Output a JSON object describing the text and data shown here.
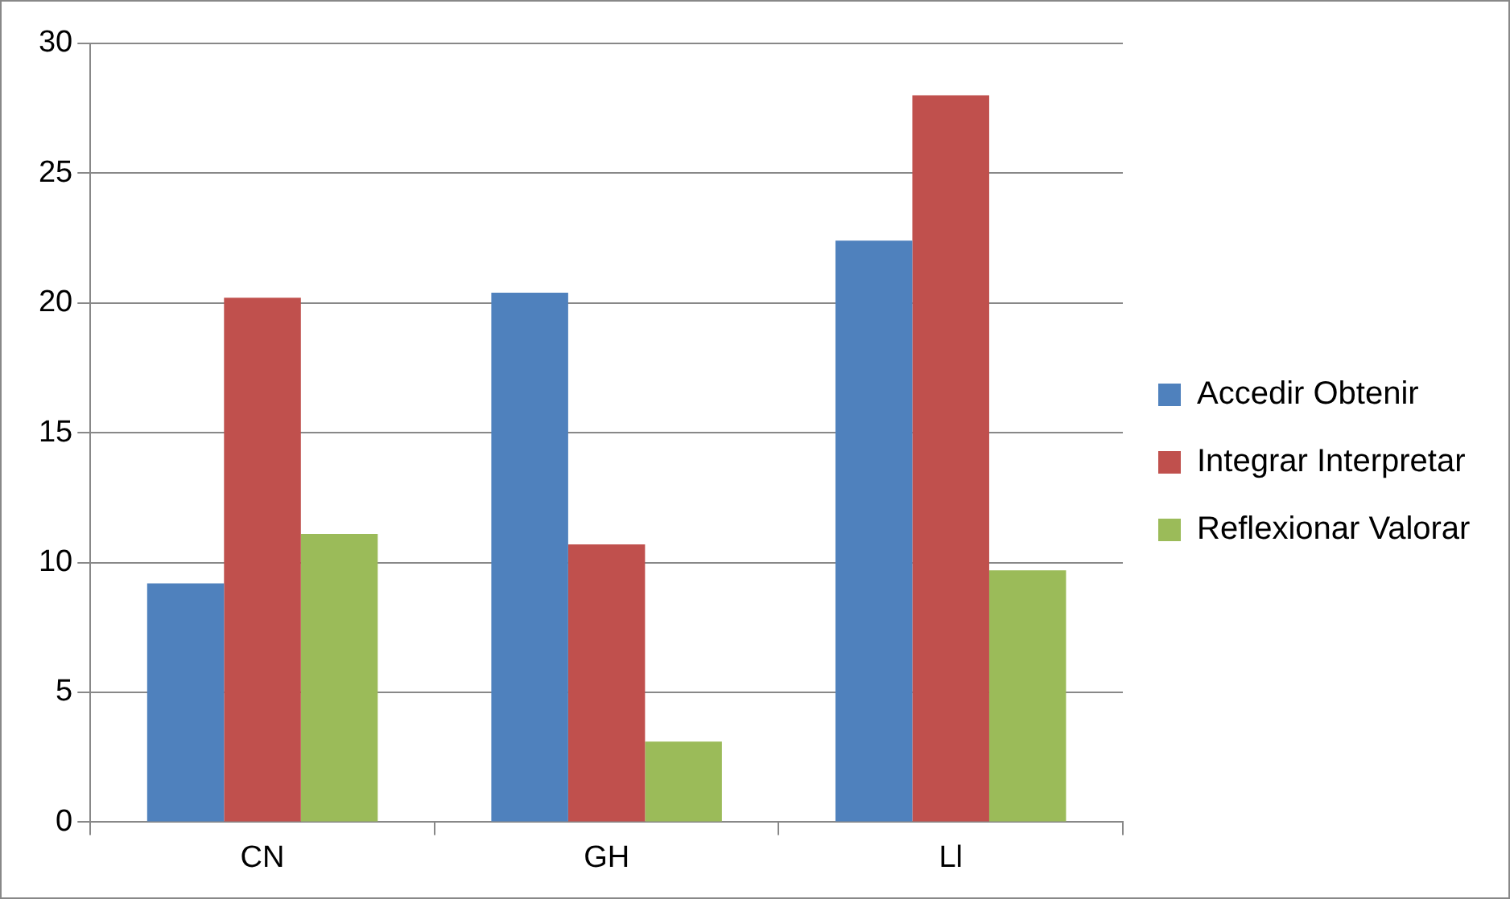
{
  "chart_data": {
    "type": "bar",
    "categories": [
      "CN",
      "GH",
      "Ll"
    ],
    "series": [
      {
        "name": "Accedir Obtenir",
        "color": "#4f81bd",
        "values": [
          9.2,
          20.4,
          22.4
        ]
      },
      {
        "name": "Integrar Interpretar",
        "color": "#c0504d",
        "values": [
          20.2,
          10.7,
          28.0
        ]
      },
      {
        "name": "Reflexionar Valorar",
        "color": "#9bbb59",
        "values": [
          11.1,
          3.1,
          9.7
        ]
      }
    ],
    "ylim": [
      0,
      30
    ],
    "yticks": [
      0,
      5,
      10,
      15,
      20,
      25,
      30
    ],
    "grid": "y",
    "legend": "right"
  }
}
